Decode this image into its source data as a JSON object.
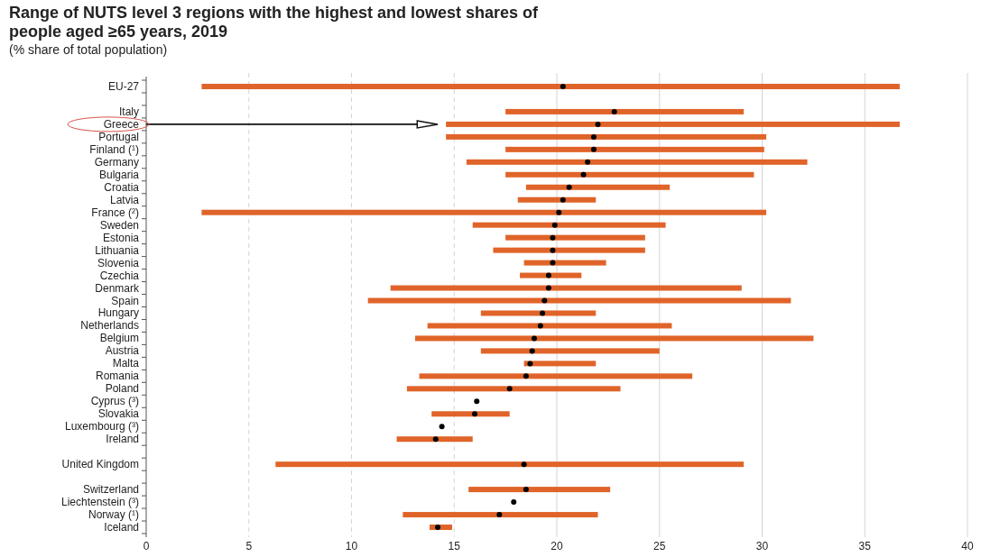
{
  "chart_data": {
    "type": "bar",
    "orientation": "horizontal",
    "title": "Range of NUTS level 3 regions with the highest and lowest shares of people aged ≥65 years, 2019",
    "subtitle": "(% share of total population)",
    "categories": [
      "EU-27",
      null,
      "Italy",
      "Greece",
      "Portugal",
      "Finland (¹)",
      "Germany",
      "Bulgaria",
      "Croatia",
      "Latvia",
      "France (²)",
      "Sweden",
      "Estonia",
      "Lithuania",
      "Slovenia",
      "Czechia",
      "Denmark",
      "Spain",
      "Hungary",
      "Netherlands",
      "Belgium",
      "Austria",
      "Malta",
      "Romania",
      "Poland",
      "Cyprus (³)",
      "Slovakia",
      "Luxembourg (³)",
      "Ireland",
      null,
      "United Kingdom",
      null,
      "Switzerland",
      "Liechtenstein (³)",
      "Norway (¹)",
      "Iceland"
    ],
    "series": [
      {
        "type": "bar",
        "color": "#e06429",
        "base": [
          2.7,
          null,
          17.5,
          14.6,
          14.6,
          17.5,
          15.6,
          17.5,
          18.5,
          18.1,
          2.7,
          15.9,
          17.5,
          16.9,
          18.4,
          18.2,
          11.9,
          10.8,
          16.3,
          13.7,
          13.1,
          16.3,
          18.4,
          13.3,
          12.7,
          null,
          13.9,
          null,
          12.2,
          null,
          6.3,
          null,
          15.7,
          null,
          12.5,
          13.8
        ],
        "values": [
          34.0,
          null,
          11.6,
          22.1,
          15.6,
          12.6,
          16.6,
          12.1,
          7.0,
          3.8,
          27.5,
          9.4,
          6.8,
          7.4,
          4.0,
          3.0,
          17.1,
          20.6,
          5.6,
          11.9,
          19.4,
          8.7,
          3.5,
          13.3,
          10.4,
          null,
          3.8,
          null,
          3.7,
          null,
          22.8,
          null,
          6.9,
          null,
          9.5,
          1.1
        ]
      },
      {
        "type": "scatter",
        "color": "#000000",
        "values": [
          20.3,
          null,
          22.8,
          22.0,
          21.8,
          21.8,
          21.5,
          21.3,
          20.6,
          20.3,
          20.1,
          19.9,
          19.8,
          19.8,
          19.8,
          19.6,
          19.6,
          19.4,
          19.3,
          19.2,
          18.9,
          18.8,
          18.7,
          18.5,
          17.7,
          16.1,
          16.0,
          14.4,
          14.1,
          null,
          18.4,
          null,
          18.5,
          17.9,
          17.2,
          14.2
        ]
      }
    ],
    "xlim": [
      0,
      40
    ],
    "xticks": [
      0,
      5,
      10,
      15,
      20,
      25,
      30,
      35,
      40
    ],
    "grid": "x",
    "marker": "circle"
  }
}
